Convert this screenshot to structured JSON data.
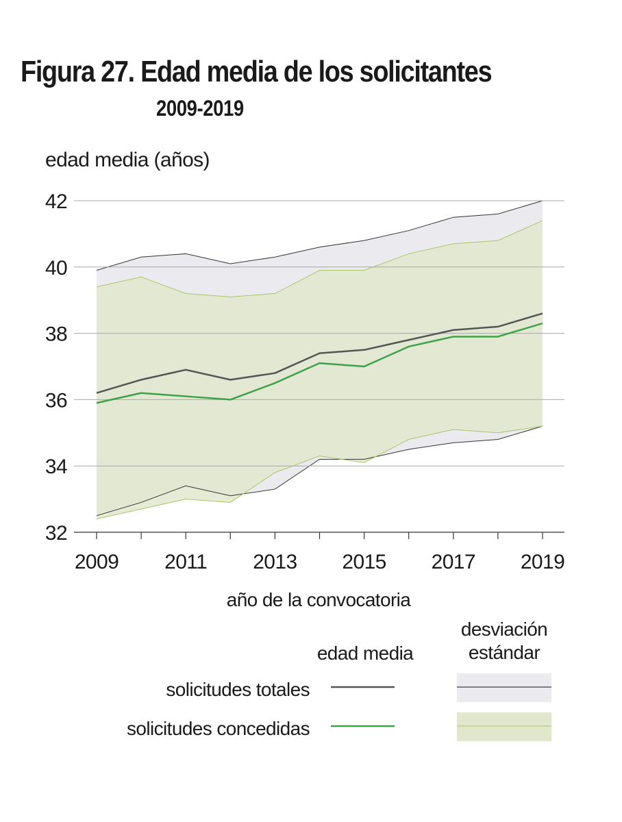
{
  "title": "Figura 27. Edad media de los solicitantes",
  "subtitle": "2009-2019",
  "legend": {
    "header_mean": "edad media",
    "header_sd_line1": "desviación",
    "header_sd_line2": "estándar",
    "row_total": "solicitudes totales",
    "row_granted": "solicitudes concedidas"
  },
  "colors": {
    "total_line": "#555555",
    "total_band": "#ebebef",
    "total_band_edge": "#333333",
    "granted_line": "#3ea24a",
    "granted_band": "#e1e7cd",
    "granted_band_edge": "#a9c66a",
    "grid": "#a8a8a8"
  },
  "chart_data": {
    "type": "line",
    "title": "Figura 27. Edad media de los solicitantes",
    "subtitle": "2009-2019",
    "xlabel": "año de la convocatoria",
    "ylabel": "edad media (años)",
    "ylim": [
      32,
      42
    ],
    "yticks": [
      32,
      34,
      36,
      38,
      40,
      42
    ],
    "x": [
      2009,
      2010,
      2011,
      2012,
      2013,
      2014,
      2015,
      2016,
      2017,
      2018,
      2019
    ],
    "xticks": [
      2009,
      2011,
      2013,
      2015,
      2017,
      2019
    ],
    "grid": "horizontal",
    "series": [
      {
        "name": "solicitudes totales",
        "kind": "edad media",
        "values": [
          36.2,
          36.6,
          36.9,
          36.6,
          36.8,
          37.4,
          37.5,
          37.8,
          38.1,
          38.2,
          38.6
        ],
        "sd_upper": [
          39.9,
          40.3,
          40.4,
          40.1,
          40.3,
          40.6,
          40.8,
          41.1,
          41.5,
          41.6,
          42.0
        ],
        "sd_lower": [
          32.5,
          32.9,
          33.4,
          33.1,
          33.3,
          34.2,
          34.2,
          34.5,
          34.7,
          34.8,
          35.2
        ]
      },
      {
        "name": "solicitudes concedidas",
        "kind": "edad media",
        "values": [
          35.9,
          36.2,
          36.1,
          36.0,
          36.5,
          37.1,
          37.0,
          37.6,
          37.9,
          37.9,
          38.3
        ],
        "sd_upper": [
          39.4,
          39.7,
          39.2,
          39.1,
          39.2,
          39.9,
          39.9,
          40.4,
          40.7,
          40.8,
          41.4
        ],
        "sd_lower": [
          32.4,
          32.7,
          33.0,
          32.9,
          33.8,
          34.3,
          34.1,
          34.8,
          35.1,
          35.0,
          35.2
        ]
      }
    ],
    "legend_position": "bottom"
  }
}
